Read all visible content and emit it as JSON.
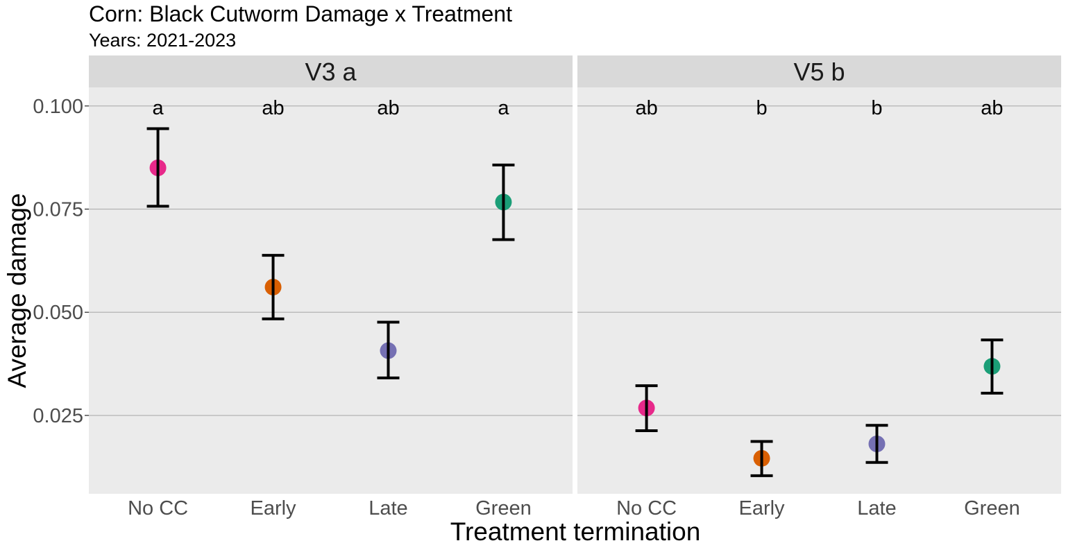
{
  "chart_data": {
    "type": "scatter",
    "title": "Corn: Black Cutworm Damage x Treatment",
    "subtitle": "Years: 2021-2023",
    "xlabel": "Treatment termination",
    "ylabel": "Average damage",
    "categories": [
      "No CC",
      "Early",
      "Late",
      "Green"
    ],
    "colors": {
      "No CC": "#e7298a",
      "Early": "#d95f02",
      "Late": "#7570b3",
      "Green": "#1b9e77"
    },
    "panel_background": "#ebebeb",
    "strip_background": "#d9d9d9",
    "ylim": [
      0.006,
      0.1045
    ],
    "yticks": [
      0.025,
      0.05,
      0.075,
      0.1
    ],
    "ytick_labels": [
      "0.025",
      "0.050",
      "0.075",
      "0.100"
    ],
    "grid": "horizontal major lines",
    "legend": "none",
    "panels": [
      {
        "label": "V3  a",
        "points": [
          {
            "category": "No CC",
            "mean": 0.085,
            "lower": 0.0757,
            "upper": 0.0945,
            "letter": "a"
          },
          {
            "category": "Early",
            "mean": 0.0561,
            "lower": 0.0484,
            "upper": 0.0638,
            "letter": "ab"
          },
          {
            "category": "Late",
            "mean": 0.0407,
            "lower": 0.0341,
            "upper": 0.0476,
            "letter": "ab"
          },
          {
            "category": "Green",
            "mean": 0.0767,
            "lower": 0.0676,
            "upper": 0.0857,
            "letter": "a"
          }
        ]
      },
      {
        "label": "V5  b",
        "points": [
          {
            "category": "No CC",
            "mean": 0.0268,
            "lower": 0.0213,
            "upper": 0.0322,
            "letter": "ab"
          },
          {
            "category": "Early",
            "mean": 0.0146,
            "lower": 0.0104,
            "upper": 0.0187,
            "letter": "b"
          },
          {
            "category": "Late",
            "mean": 0.0181,
            "lower": 0.0136,
            "upper": 0.0226,
            "letter": "b"
          },
          {
            "category": "Green",
            "mean": 0.0369,
            "lower": 0.0304,
            "upper": 0.0433,
            "letter": "ab"
          }
        ]
      }
    ]
  }
}
